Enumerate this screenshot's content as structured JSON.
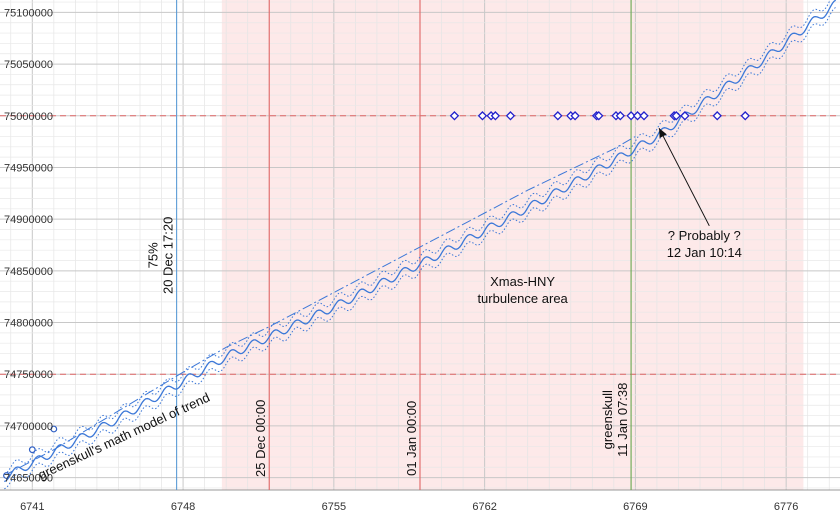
{
  "chart_data": {
    "type": "line",
    "xlim": [
      6739.5,
      6778.5
    ],
    "ylim": [
      74638000,
      75112000
    ],
    "x_ticks": [
      6741,
      6748,
      6755,
      6762,
      6769,
      6776
    ],
    "x_tick_labels": [
      "6741",
      "6748",
      "6755",
      "6762",
      "6769",
      "6776"
    ],
    "y_ticks": [
      74650000,
      74700000,
      74750000,
      74800000,
      74850000,
      74900000,
      74950000,
      75000000,
      75050000,
      75100000
    ],
    "y_tick_labels": [
      "74650000",
      "74700000",
      "74750000",
      "74800000",
      "74850000",
      "74900000",
      "74950000",
      "75000000",
      "75050000",
      "75100000"
    ],
    "grid": true,
    "shaded_region": {
      "x": [
        6749.8,
        6776.8
      ],
      "color": "#fde9e9",
      "label_lines": [
        "Xmas-HNY",
        "turbulence area"
      ]
    },
    "horizontal_lines": [
      {
        "y": 74750000,
        "style": "dashed",
        "color": "#e06666"
      },
      {
        "y": 75000000,
        "style": "dashed",
        "color": "#e06666"
      }
    ],
    "vertical_lines": [
      {
        "x": 6747.7,
        "color": "#5b9bd5",
        "label_lines": [
          "75%",
          "20 Dec 17:20"
        ],
        "label_y": 74865000
      },
      {
        "x": 6752.0,
        "color": "#e06666",
        "label_lines": [
          "25 Dec 00:00"
        ],
        "label_y": 74688000
      },
      {
        "x": 6759.0,
        "color": "#e06666",
        "label_lines": [
          "01 Jan 00:00"
        ],
        "label_y": 74688000
      },
      {
        "x": 6768.8,
        "color": "#6aa84f",
        "label_lines": [
          "greenskull",
          "11 Jan 07:38"
        ],
        "label_y": 74706000
      }
    ],
    "series": [
      {
        "style": "dashdot",
        "color": "#3c78d8",
        "x": [
          6739.7,
          6742.0,
          6744.0,
          6746.0,
          6748.0,
          6750.0,
          6752.0,
          6754.0,
          6756.0,
          6758.0,
          6760.0,
          6762.0,
          6764.0,
          6766.0,
          6768.0,
          6769.0
        ],
        "y": [
          74652000,
          74677000,
          74702000,
          74727000,
          74752000,
          74776000,
          74796000,
          74818000,
          74840000,
          74862000,
          74884000,
          74906000,
          74928000,
          74948000,
          74968000,
          74980000
        ]
      },
      {
        "style": "solid",
        "color": "#3c78d8",
        "x": [
          6739.7,
          6745.0,
          6750.0,
          6755.0,
          6760.0,
          6765.0,
          6770.0,
          6775.0,
          6778.3
        ],
        "y": [
          74650000,
          74707000,
          74767000,
          74815000,
          74867000,
          74922000,
          74980000,
          75055000,
          75108000
        ],
        "wiggle": 4000
      },
      {
        "style": "dotted",
        "color": "#3c78d8",
        "x": [
          6739.7,
          6745.0,
          6750.0,
          6755.0,
          6760.0,
          6765.0,
          6770.0,
          6775.0,
          6778.3
        ],
        "y": [
          74657000,
          74714000,
          74774000,
          74822000,
          74874000,
          74929000,
          74987000,
          75062000,
          75115000
        ],
        "wiggle": 4000
      },
      {
        "style": "dotted",
        "color": "#3c78d8",
        "x": [
          6739.7,
          6745.0,
          6750.0,
          6755.0,
          6760.0,
          6765.0,
          6770.0,
          6775.0,
          6778.3
        ],
        "y": [
          74643000,
          74700000,
          74760000,
          74808000,
          74860000,
          74915000,
          74973000,
          75048000,
          75101000
        ],
        "wiggle": 4000
      }
    ],
    "circle_points": [
      {
        "x": 6739.8,
        "y": 74652000
      },
      {
        "x": 6741.0,
        "y": 74677000
      },
      {
        "x": 6742.0,
        "y": 74697000
      }
    ],
    "diamond_points": {
      "y": 75000000,
      "x": [
        6760.6,
        6761.9,
        6762.3,
        6762.5,
        6763.2,
        6765.4,
        6766.0,
        6766.2,
        6767.2,
        6767.3,
        6768.1,
        6768.3,
        6768.8,
        6769.1,
        6769.4,
        6770.8,
        6770.9,
        6771.3,
        6772.8,
        6774.1
      ]
    },
    "annotations": [
      {
        "text_lines": [
          "? Probably ?",
          "12 Jan 10:14"
        ],
        "text_x": 6772.2,
        "text_y": 74880000,
        "arrow_to": [
          6770.1,
          74988000
        ]
      },
      {
        "text_lines": [
          "greenskull's math model of trend"
        ],
        "text_x": 6741.4,
        "text_y": 74648000,
        "angle": -25
      }
    ]
  }
}
